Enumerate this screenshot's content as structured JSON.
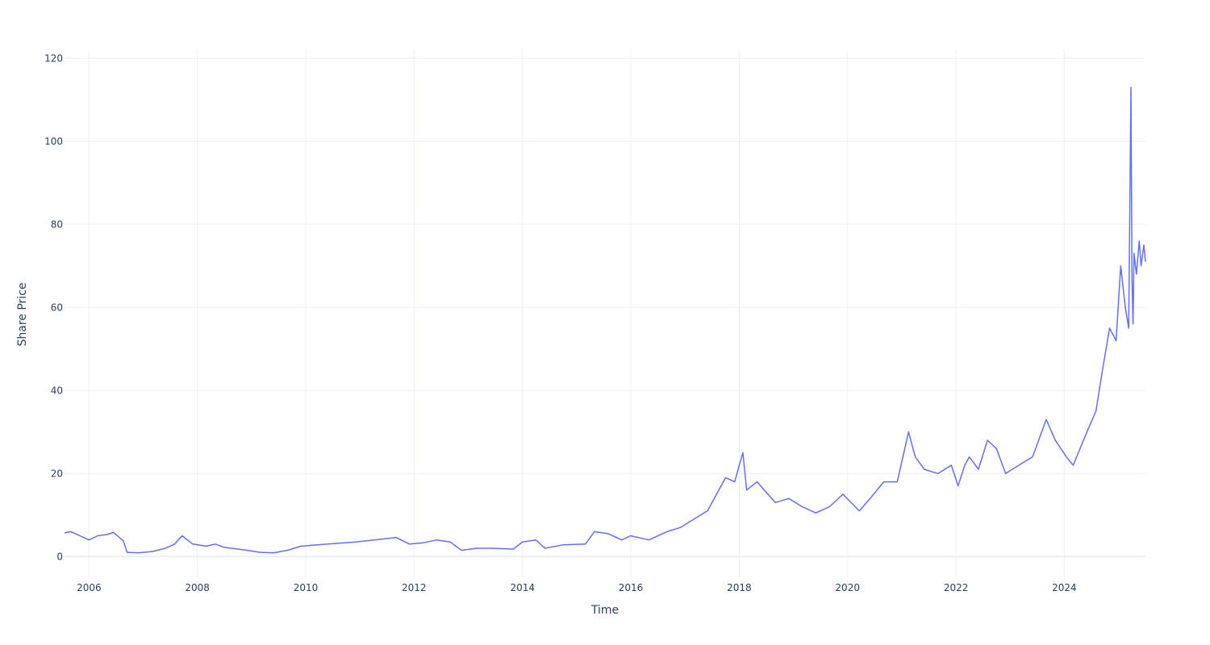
{
  "chart_data": {
    "type": "line",
    "title": "",
    "xlabel": "Time",
    "ylabel": "Share Price",
    "x_range": [
      "2005-07-20",
      "2025-07-01"
    ],
    "ylim": [
      -5,
      122
    ],
    "x_ticks": [
      "2006",
      "2008",
      "2010",
      "2012",
      "2014",
      "2016",
      "2018",
      "2020",
      "2022",
      "2024"
    ],
    "y_ticks": [
      0,
      20,
      40,
      60,
      80,
      100,
      120
    ],
    "grid": true,
    "legend": "none",
    "line_color": "#636efa",
    "series": [
      {
        "x": [
          "2005-07-20",
          "2005-09-01",
          "2005-11-01",
          "2006-01-01",
          "2006-03-01",
          "2006-05-01",
          "2006-06-15",
          "2006-08-20",
          "2006-09-15",
          "2006-12-01",
          "2007-03-01",
          "2007-06-01",
          "2007-08-01",
          "2007-09-20",
          "2007-12-01",
          "2008-03-01",
          "2008-05-01",
          "2008-07-01",
          "2008-12-01",
          "2009-03-01",
          "2009-06-01",
          "2009-09-01",
          "2009-12-01",
          "2010-06-01",
          "2010-12-01",
          "2011-06-01",
          "2011-09-01",
          "2011-12-01",
          "2012-03-01",
          "2012-06-01",
          "2012-09-01",
          "2012-11-15",
          "2013-03-01",
          "2013-06-01",
          "2013-11-01",
          "2014-01-01",
          "2014-04-01",
          "2014-06-01",
          "2014-10-01",
          "2015-03-01",
          "2015-05-01",
          "2015-08-01",
          "2015-11-01",
          "2016-01-01",
          "2016-05-01",
          "2016-09-01",
          "2016-12-01",
          "2017-03-01",
          "2017-06-01",
          "2017-10-01",
          "2017-12-01",
          "2018-01-25",
          "2018-02-20",
          "2018-05-01",
          "2018-09-01",
          "2018-12-01",
          "2019-03-01",
          "2019-06-01",
          "2019-09-01",
          "2019-12-01",
          "2020-03-20",
          "2020-06-01",
          "2020-09-01",
          "2020-12-01",
          "2021-02-15",
          "2021-04-01",
          "2021-06-01",
          "2021-09-01",
          "2021-12-01",
          "2022-01-15",
          "2022-03-01",
          "2022-04-01",
          "2022-06-01",
          "2022-08-01",
          "2022-10-01",
          "2022-12-01",
          "2023-03-01",
          "2023-06-01",
          "2023-09-01",
          "2023-11-01",
          "2024-01-15",
          "2024-03-01",
          "2024-06-01",
          "2024-08-01",
          "2024-09-15",
          "2024-11-01",
          "2024-12-15",
          "2025-01-15",
          "2025-02-15",
          "2025-03-10",
          "2025-03-25",
          "2025-04-01",
          "2025-04-08",
          "2025-04-15",
          "2025-05-01",
          "2025-05-20",
          "2025-06-01",
          "2025-06-20",
          "2025-07-01"
        ],
        "y": [
          5.7,
          6,
          5,
          4,
          5,
          5.3,
          5.8,
          3.8,
          1.0,
          0.9,
          1.2,
          2.0,
          3.0,
          5.0,
          3.0,
          2.5,
          3.0,
          2.2,
          1.5,
          1.0,
          0.9,
          1.5,
          2.5,
          3.0,
          3.5,
          4.2,
          4.6,
          3.0,
          3.3,
          4.0,
          3.5,
          1.5,
          2.0,
          2.0,
          1.8,
          3.5,
          4.0,
          2.0,
          2.8,
          3.0,
          6.0,
          5.5,
          4.0,
          5.0,
          4.0,
          6.0,
          7.0,
          9.0,
          11.0,
          19.0,
          18.0,
          25.0,
          16.0,
          18.0,
          13.0,
          14.0,
          12.0,
          10.5,
          12.0,
          15.0,
          11.0,
          14.0,
          18.0,
          18.0,
          30.0,
          24.0,
          21.0,
          20.0,
          22.0,
          17.0,
          22.0,
          24.0,
          21.0,
          28.0,
          26.0,
          20.0,
          22.0,
          24.0,
          33.0,
          28.0,
          24.0,
          22.0,
          30.0,
          35.0,
          45.0,
          55.0,
          52.0,
          70.0,
          60.0,
          55.0,
          113.0,
          67.0,
          56.0,
          73.0,
          68.0,
          76.0,
          70.0,
          75.0,
          71.0
        ]
      }
    ]
  }
}
